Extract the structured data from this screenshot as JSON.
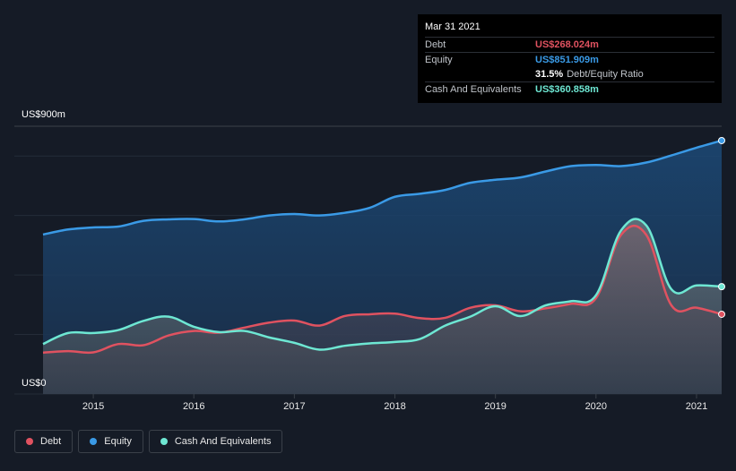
{
  "tooltip": {
    "date": "Mar 31 2021",
    "debt_label": "Debt",
    "debt_value": "US$268.024m",
    "equity_label": "Equity",
    "equity_value": "US$851.909m",
    "ratio_value": "31.5%",
    "ratio_label": "Debt/Equity Ratio",
    "cash_label": "Cash And Equivalents",
    "cash_value": "US$360.858m"
  },
  "colors": {
    "debt": "#e05260",
    "equity": "#3a9ae6",
    "cash": "#6ee7d3",
    "background": "#151b26"
  },
  "legend": [
    {
      "name": "Debt",
      "color": "#e05260"
    },
    {
      "name": "Equity",
      "color": "#3a9ae6"
    },
    {
      "name": "Cash And Equivalents",
      "color": "#6ee7d3"
    }
  ],
  "chart_data": {
    "type": "area",
    "title": "",
    "ylabel": "",
    "y_top_label": "US$900m",
    "y_bottom_label": "US$0",
    "ylim": [
      0,
      900
    ],
    "xlim": [
      2014.5,
      2021.25
    ],
    "x_ticks": [
      "2015",
      "2016",
      "2017",
      "2018",
      "2019",
      "2020",
      "2021"
    ],
    "grid": true,
    "legend_position": "bottom-left",
    "series": [
      {
        "name": "Equity",
        "x": [
          2014.5,
          2014.75,
          2015.0,
          2015.25,
          2015.5,
          2015.75,
          2016.0,
          2016.25,
          2016.5,
          2016.75,
          2017.0,
          2017.25,
          2017.5,
          2017.75,
          2018.0,
          2018.25,
          2018.5,
          2018.75,
          2019.0,
          2019.25,
          2019.5,
          2019.75,
          2020.0,
          2020.25,
          2020.5,
          2020.75,
          2021.0,
          2021.25
        ],
        "values": [
          536,
          553,
          560,
          563,
          582,
          587,
          588,
          580,
          587,
          600,
          605,
          600,
          609,
          626,
          663,
          673,
          686,
          710,
          720,
          728,
          748,
          766,
          770,
          766,
          778,
          802,
          828,
          851.909
        ]
      },
      {
        "name": "Debt",
        "x": [
          2014.5,
          2014.75,
          2015.0,
          2015.25,
          2015.5,
          2015.75,
          2016.0,
          2016.25,
          2016.5,
          2016.75,
          2017.0,
          2017.25,
          2017.5,
          2017.75,
          2018.0,
          2018.25,
          2018.5,
          2018.75,
          2019.0,
          2019.25,
          2019.5,
          2019.75,
          2020.0,
          2020.25,
          2020.5,
          2020.75,
          2021.0,
          2021.25
        ],
        "values": [
          139,
          144,
          140,
          168,
          164,
          197,
          212,
          206,
          223,
          240,
          247,
          230,
          262,
          268,
          270,
          255,
          256,
          290,
          298,
          278,
          288,
          303,
          322,
          535,
          535,
          298,
          290,
          268.024
        ]
      },
      {
        "name": "Cash And Equivalents",
        "x": [
          2014.5,
          2014.75,
          2015.0,
          2015.25,
          2015.5,
          2015.75,
          2016.0,
          2016.25,
          2016.5,
          2016.75,
          2017.0,
          2017.25,
          2017.5,
          2017.75,
          2018.0,
          2018.25,
          2018.5,
          2018.75,
          2019.0,
          2019.25,
          2019.5,
          2019.75,
          2020.0,
          2020.25,
          2020.5,
          2020.75,
          2021.0,
          2021.25
        ],
        "values": [
          168,
          205,
          205,
          215,
          246,
          260,
          226,
          208,
          212,
          190,
          172,
          149,
          162,
          170,
          175,
          185,
          230,
          260,
          295,
          262,
          298,
          312,
          332,
          550,
          567,
          352,
          365,
          360.858
        ]
      }
    ]
  }
}
